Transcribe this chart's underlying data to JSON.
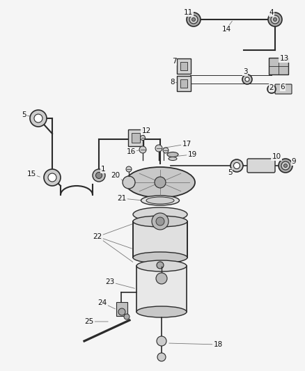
{
  "bg_color": "#f5f5f5",
  "fig_width": 4.38,
  "fig_height": 5.33,
  "dpi": 100,
  "line_color": "#2a2a2a",
  "gray_fill": "#d0d0d0",
  "light_fill": "#e8e8e8",
  "dark_fill": "#888888"
}
